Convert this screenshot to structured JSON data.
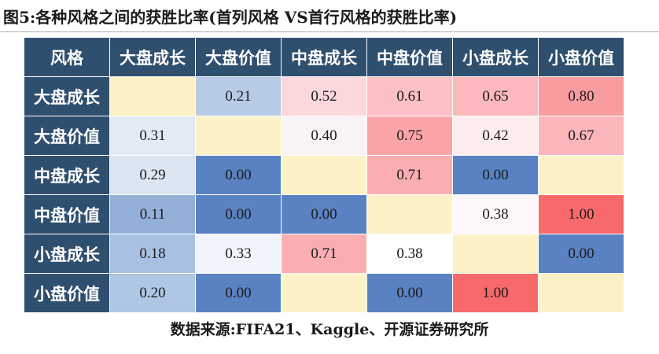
{
  "title": "图5:各种风格之间的获胜比率(首列风格 VS首行风格的获胜比率)",
  "table": {
    "corner": "风格",
    "columns": [
      "大盘成长",
      "大盘价值",
      "中盘成长",
      "中盘价值",
      "小盘成长",
      "小盘价值"
    ],
    "rows": [
      {
        "label": "大盘成长",
        "cells": [
          {
            "v": "",
            "bg": "#fdf1c7"
          },
          {
            "v": "0.21",
            "bg": "#b7cbe5"
          },
          {
            "v": "0.52",
            "bg": "#fcd7dc"
          },
          {
            "v": "0.61",
            "bg": "#fbbfc4"
          },
          {
            "v": "0.65",
            "bg": "#fbb8bd"
          },
          {
            "v": "0.80",
            "bg": "#f99c9f"
          }
        ]
      },
      {
        "label": "大盘价值",
        "cells": [
          {
            "v": "0.31",
            "bg": "#e2eaf4"
          },
          {
            "v": "",
            "bg": "#fdf1c7"
          },
          {
            "v": "0.40",
            "bg": "#f9f3f6"
          },
          {
            "v": "0.75",
            "bg": "#faa4a8"
          },
          {
            "v": "0.42",
            "bg": "#fcecee"
          },
          {
            "v": "0.67",
            "bg": "#fbb6ba"
          }
        ]
      },
      {
        "label": "中盘成长",
        "cells": [
          {
            "v": "0.29",
            "bg": "#dce5f2"
          },
          {
            "v": "0.00",
            "bg": "#5a82c2"
          },
          {
            "v": "",
            "bg": "#fdf1c7"
          },
          {
            "v": "0.71",
            "bg": "#faaeb2"
          },
          {
            "v": "0.00",
            "bg": "#5a82c2"
          },
          {
            "v": "",
            "bg": "#fdf1c7"
          }
        ]
      },
      {
        "label": "中盘价值",
        "cells": [
          {
            "v": "0.11",
            "bg": "#93b0d9"
          },
          {
            "v": "0.00",
            "bg": "#5a82c2"
          },
          {
            "v": "0.00",
            "bg": "#5a82c2"
          },
          {
            "v": "",
            "bg": "#fdf1c7"
          },
          {
            "v": "0.38",
            "bg": "#fbf7fa"
          },
          {
            "v": "1.00",
            "bg": "#f8696b"
          }
        ]
      },
      {
        "label": "小盘成长",
        "cells": [
          {
            "v": "0.18",
            "bg": "#a8c0e2"
          },
          {
            "v": "0.33",
            "bg": "#f1f4fb"
          },
          {
            "v": "0.71",
            "bg": "#faaeb2"
          },
          {
            "v": "0.38",
            "bg": "#ffffff"
          },
          {
            "v": "",
            "bg": "#fdf1c7"
          },
          {
            "v": "0.00",
            "bg": "#5a82c2"
          }
        ]
      },
      {
        "label": "小盘价值",
        "cells": [
          {
            "v": "0.20",
            "bg": "#afc6e4"
          },
          {
            "v": "0.00",
            "bg": "#5a82c2"
          },
          {
            "v": "",
            "bg": "#fdf1c7"
          },
          {
            "v": "0.00",
            "bg": "#5a82c2"
          },
          {
            "v": "1.00",
            "bg": "#f8696b"
          },
          {
            "v": "",
            "bg": "#fdf1c7"
          }
        ]
      }
    ]
  },
  "source": "数据来源:FIFA21、Kaggle、开源证券研究所",
  "colors": {
    "header_bg": "#2f4f6f",
    "header_text": "#ffffff",
    "diagonal": "#fdf1c7"
  }
}
